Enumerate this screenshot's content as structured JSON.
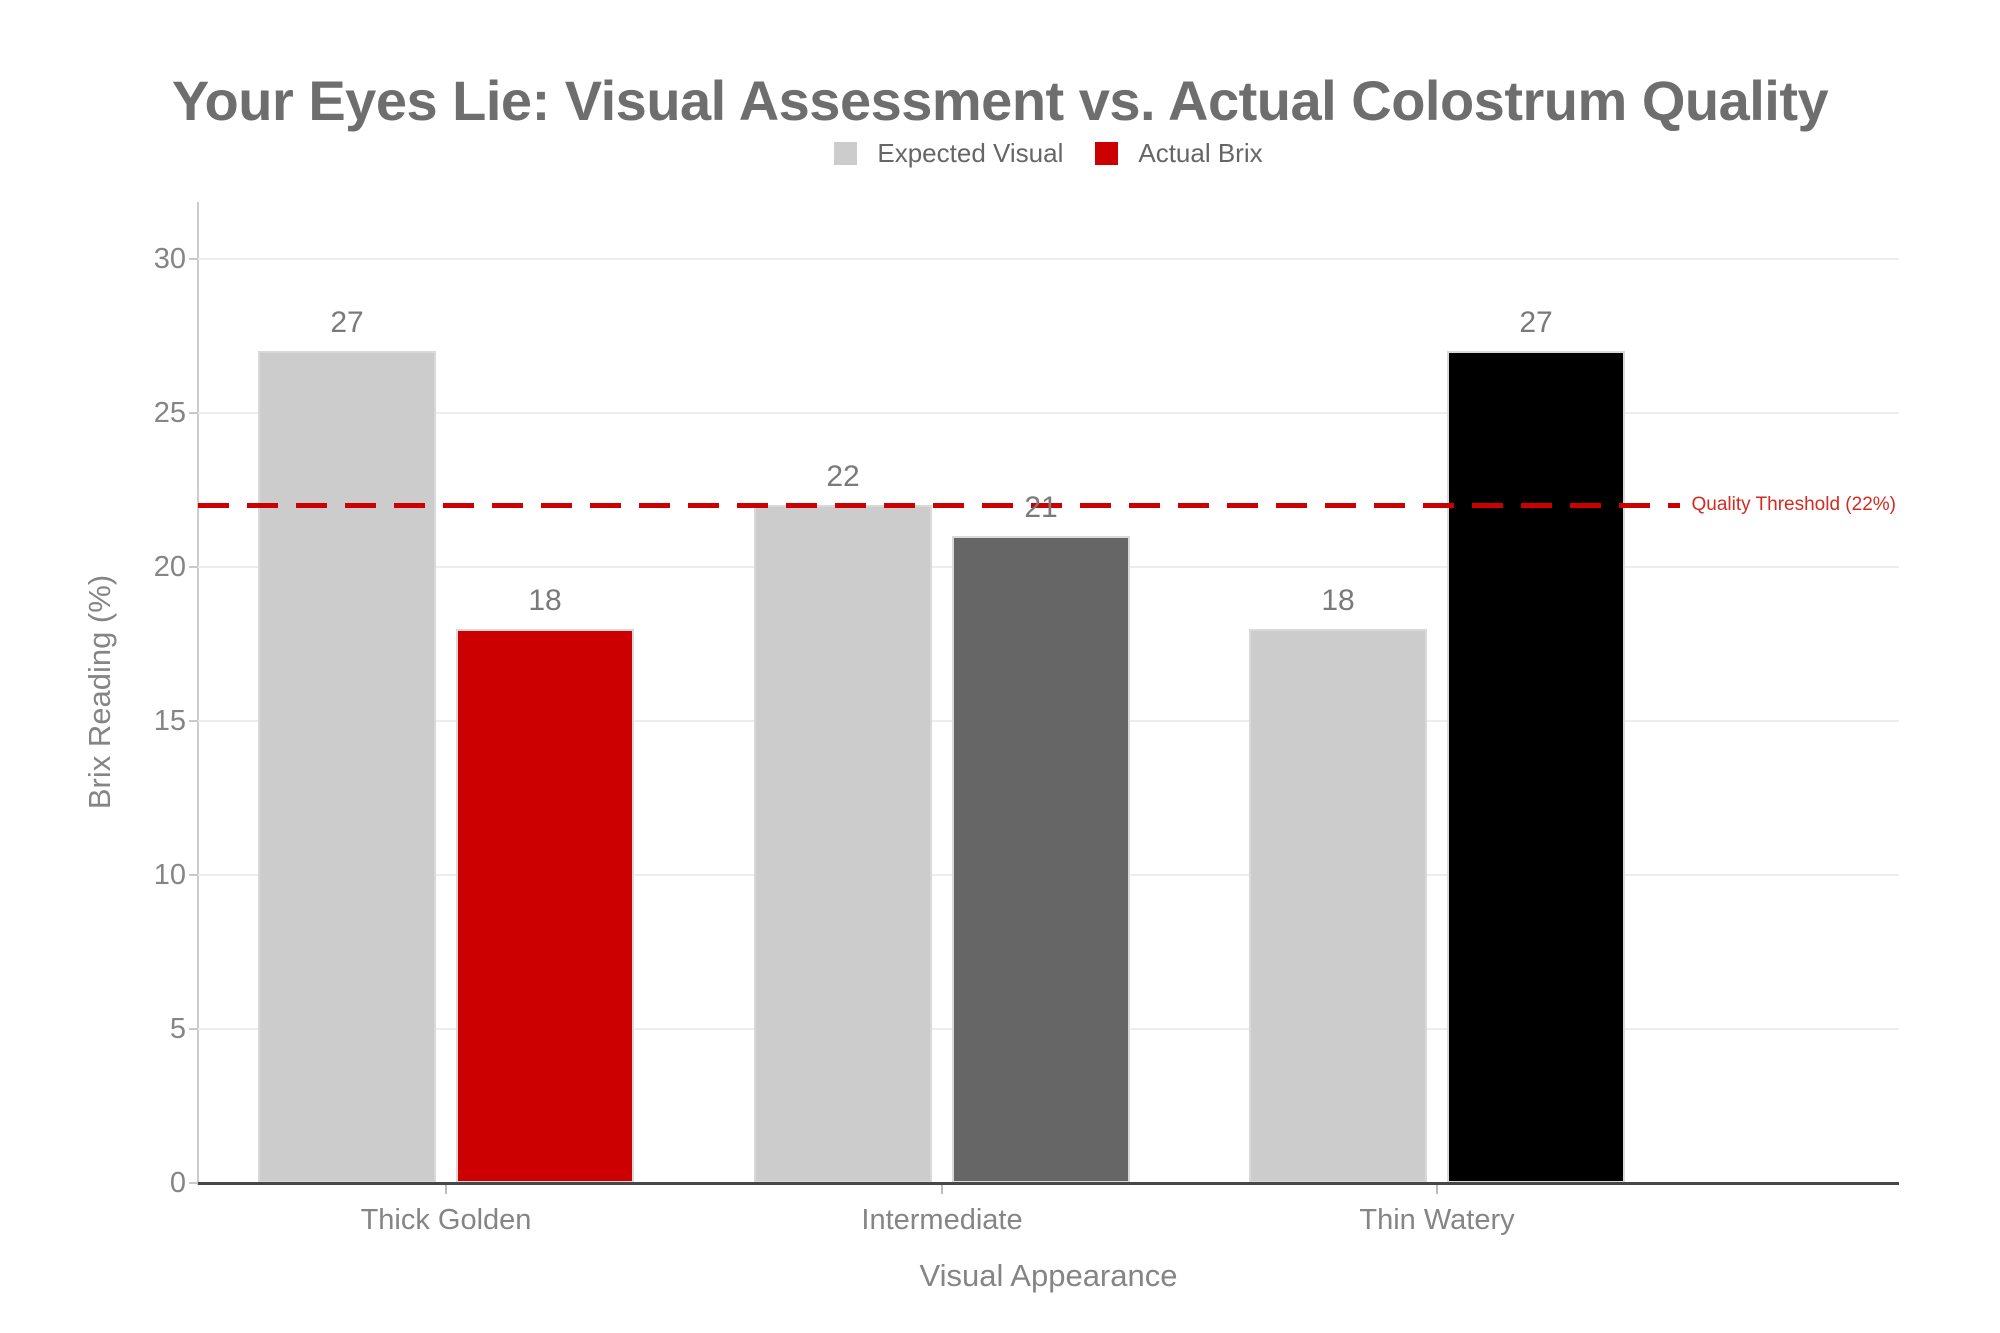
{
  "title": "Your Eyes Lie: Visual Assessment vs. Actual Colostrum Quality",
  "legend": {
    "items": [
      {
        "label": "Expected Visual",
        "color": "#cccccc"
      },
      {
        "label": "Actual Brix",
        "color": "#cc0000"
      }
    ]
  },
  "axes": {
    "y_title": "Brix Reading (%)",
    "x_title": "Visual Appearance",
    "y_ticks": [
      "0",
      "5",
      "10",
      "15",
      "20",
      "25",
      "30"
    ]
  },
  "threshold": {
    "label": "Quality Threshold (22%)",
    "value": 22,
    "line_color": "#cc0000",
    "label_color": "#d32b22"
  },
  "chart_data": {
    "type": "bar",
    "title": "Your Eyes Lie: Visual Assessment vs. Actual Colostrum Quality",
    "categories": [
      "Thick Golden",
      "Intermediate",
      "Thin Watery"
    ],
    "series": [
      {
        "name": "Expected Visual",
        "values": [
          27,
          22,
          18
        ],
        "colors": [
          "#cccccc",
          "#cccccc",
          "#cccccc"
        ]
      },
      {
        "name": "Actual Brix",
        "values": [
          18,
          21,
          27
        ],
        "colors": [
          "#cc0000",
          "#666666",
          "#000000"
        ]
      }
    ],
    "xlabel": "Visual Appearance",
    "ylabel": "Brix Reading (%)",
    "ylim": [
      0,
      31.8
    ],
    "yticks": [
      0,
      5,
      10,
      15,
      20,
      25,
      30
    ],
    "grid": true,
    "legend_position": "top-center",
    "annotations": [
      {
        "type": "hline",
        "y": 22,
        "label": "Quality Threshold (22%)",
        "style": "dashed",
        "color": "#cc0000"
      }
    ]
  }
}
